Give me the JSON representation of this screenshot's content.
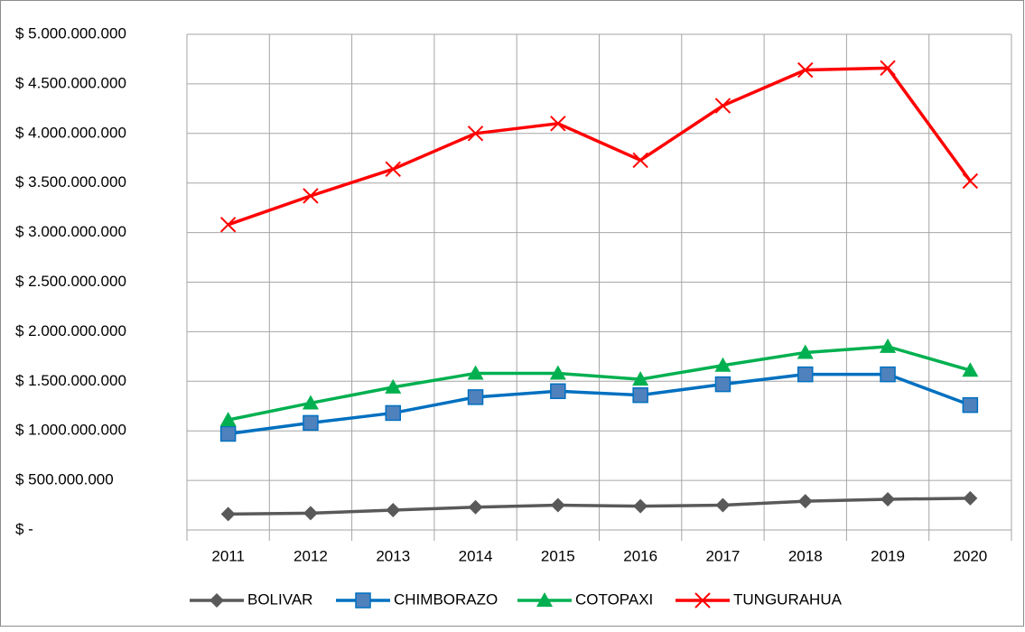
{
  "chart_data": {
    "type": "line",
    "categories": [
      "2011",
      "2012",
      "2013",
      "2014",
      "2015",
      "2016",
      "2017",
      "2018",
      "2019",
      "2020"
    ],
    "series": [
      {
        "name": "BOLIVAR",
        "color": "#595959",
        "marker": "diamond",
        "values": [
          160000000,
          170000000,
          200000000,
          230000000,
          250000000,
          240000000,
          250000000,
          290000000,
          310000000,
          320000000
        ]
      },
      {
        "name": "CHIMBORAZO",
        "color": "#0070c0",
        "marker": "square",
        "values": [
          970000000,
          1080000000,
          1180000000,
          1340000000,
          1400000000,
          1360000000,
          1470000000,
          1570000000,
          1570000000,
          1260000000
        ]
      },
      {
        "name": "COTOPAXI",
        "color": "#00b050",
        "marker": "triangle",
        "values": [
          1110000000,
          1280000000,
          1440000000,
          1580000000,
          1580000000,
          1520000000,
          1660000000,
          1790000000,
          1850000000,
          1610000000
        ]
      },
      {
        "name": "TUNGURAHUA",
        "color": "#ff0000",
        "marker": "x",
        "values": [
          3080000000,
          3370000000,
          3640000000,
          4000000000,
          4100000000,
          3730000000,
          4280000000,
          4640000000,
          4660000000,
          3520000000
        ]
      }
    ],
    "ylim": [
      0,
      5000000000
    ],
    "yticks": [
      {
        "value": 0,
        "label": "$ -"
      },
      {
        "value": 500000000,
        "label": "$ 500.000.000"
      },
      {
        "value": 1000000000,
        "label": "$ 1.000.000.000"
      },
      {
        "value": 1500000000,
        "label": "$ 1.500.000.000"
      },
      {
        "value": 2000000000,
        "label": "$ 2.000.000.000"
      },
      {
        "value": 2500000000,
        "label": "$ 2.500.000.000"
      },
      {
        "value": 3000000000,
        "label": "$ 3.000.000.000"
      },
      {
        "value": 3500000000,
        "label": "$ 3.500.000.000"
      },
      {
        "value": 4000000000,
        "label": "$ 4.000.000.000"
      },
      {
        "value": 4500000000,
        "label": "$ 4.500.000.000"
      },
      {
        "value": 5000000000,
        "label": "$ 5.000.000.000"
      }
    ],
    "grid": true,
    "legend": "bottom"
  }
}
